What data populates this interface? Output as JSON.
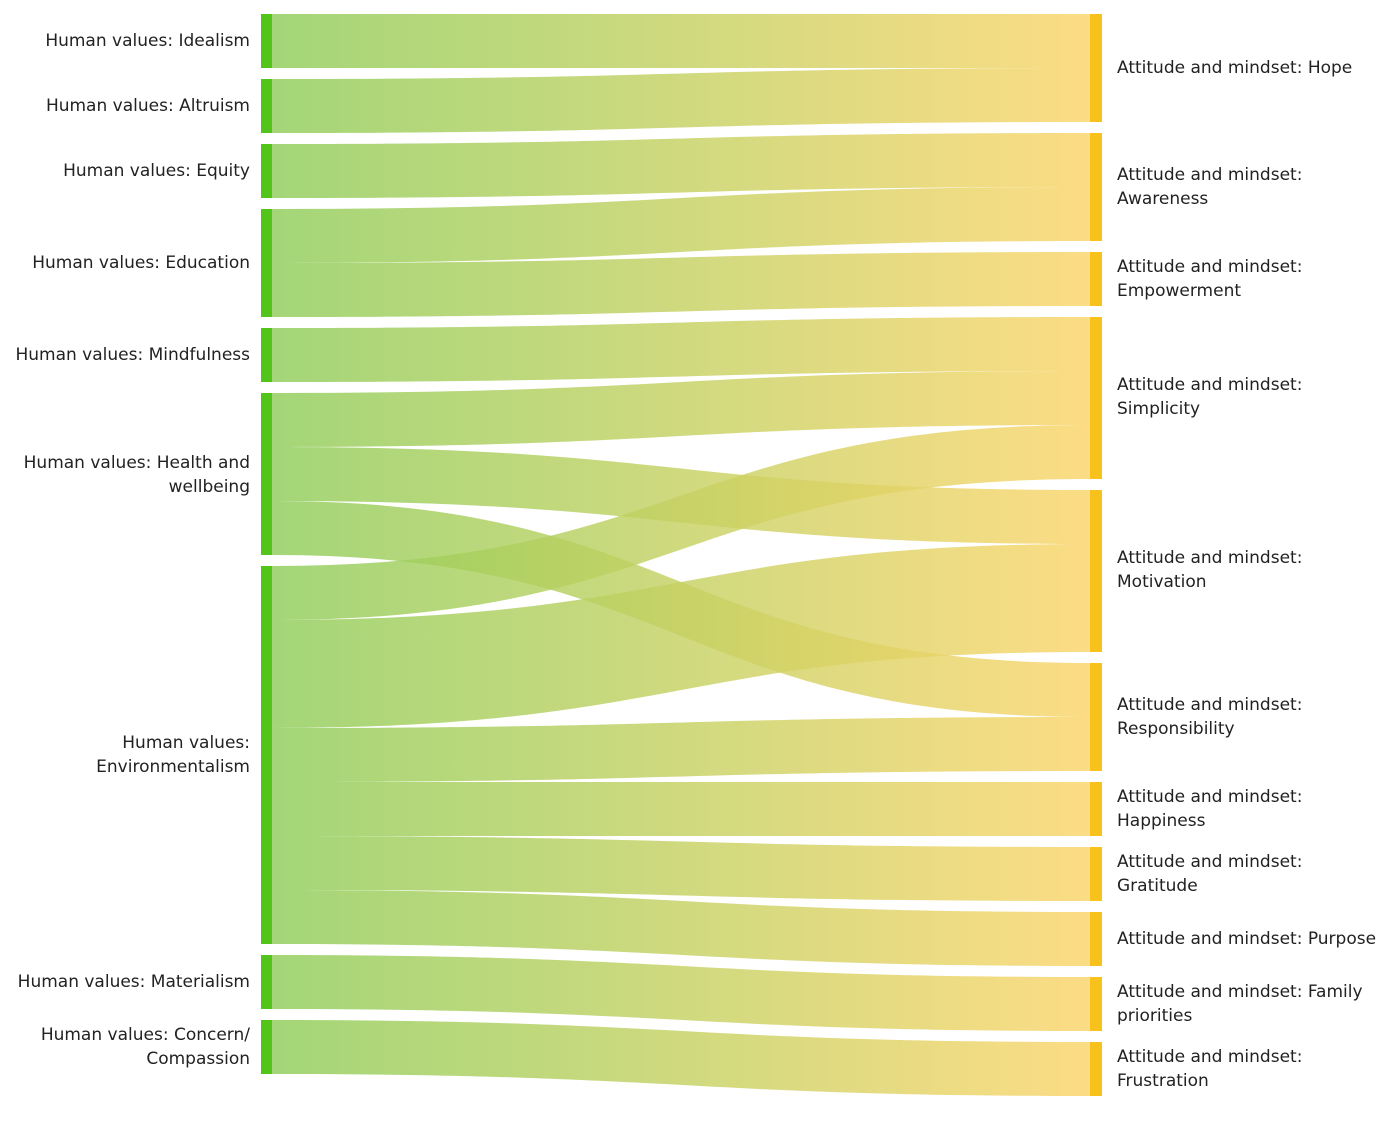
{
  "colors": {
    "source_node": "#52c41a",
    "target_node": "#f8c21c",
    "link_start": "#8fcd5a",
    "link_end": "#fbd56a"
  },
  "sources": [
    {
      "id": "idealism",
      "lines": [
        "Human values: Idealism"
      ]
    },
    {
      "id": "altruism",
      "lines": [
        "Human values: Altruism"
      ]
    },
    {
      "id": "equity",
      "lines": [
        "Human values: Equity"
      ]
    },
    {
      "id": "education",
      "lines": [
        "Human values: Education"
      ]
    },
    {
      "id": "mindfulness",
      "lines": [
        "Human values: Mindfulness"
      ]
    },
    {
      "id": "health",
      "lines": [
        "Human values: Health and",
        "wellbeing"
      ]
    },
    {
      "id": "environmentalism",
      "lines": [
        "Human values:",
        "Environmentalism"
      ]
    },
    {
      "id": "materialism",
      "lines": [
        "Human values: Materialism"
      ]
    },
    {
      "id": "concern",
      "lines": [
        "Human values: Concern/",
        "Compassion"
      ]
    }
  ],
  "targets": [
    {
      "id": "hope",
      "lines": [
        "Attitude and mindset: Hope"
      ]
    },
    {
      "id": "awareness",
      "lines": [
        "Attitude and mindset:",
        "Awareness"
      ]
    },
    {
      "id": "empowerment",
      "lines": [
        "Attitude and mindset:",
        "Empowerment"
      ]
    },
    {
      "id": "simplicity",
      "lines": [
        "Attitude and mindset:",
        "Simplicity"
      ]
    },
    {
      "id": "motivation",
      "lines": [
        "Attitude and mindset:",
        "Motivation"
      ]
    },
    {
      "id": "responsibility",
      "lines": [
        "Attitude and mindset:",
        "Responsibility"
      ]
    },
    {
      "id": "happiness",
      "lines": [
        "Attitude and mindset:",
        "Happiness"
      ]
    },
    {
      "id": "gratitude",
      "lines": [
        "Attitude and mindset:",
        "Gratitude"
      ]
    },
    {
      "id": "purpose",
      "lines": [
        "Attitude and mindset: Purpose"
      ]
    },
    {
      "id": "family",
      "lines": [
        "Attitude and mindset: Family",
        "priorities"
      ]
    },
    {
      "id": "frustration",
      "lines": [
        "Attitude and mindset:",
        "Frustration"
      ]
    }
  ],
  "links": [
    {
      "source": "idealism",
      "target": "hope",
      "value": 1
    },
    {
      "source": "altruism",
      "target": "hope",
      "value": 1
    },
    {
      "source": "equity",
      "target": "awareness",
      "value": 1
    },
    {
      "source": "education",
      "target": "awareness",
      "value": 1
    },
    {
      "source": "education",
      "target": "empowerment",
      "value": 1
    },
    {
      "source": "mindfulness",
      "target": "simplicity",
      "value": 1
    },
    {
      "source": "health",
      "target": "simplicity",
      "value": 1
    },
    {
      "source": "health",
      "target": "motivation",
      "value": 1
    },
    {
      "source": "health",
      "target": "responsibility",
      "value": 1
    },
    {
      "source": "environmentalism",
      "target": "simplicity",
      "value": 1
    },
    {
      "source": "environmentalism",
      "target": "motivation",
      "value": 2
    },
    {
      "source": "environmentalism",
      "target": "responsibility",
      "value": 1
    },
    {
      "source": "environmentalism",
      "target": "happiness",
      "value": 1
    },
    {
      "source": "environmentalism",
      "target": "gratitude",
      "value": 1
    },
    {
      "source": "environmentalism",
      "target": "purpose",
      "value": 1
    },
    {
      "source": "materialism",
      "target": "family",
      "value": 1
    },
    {
      "source": "concern",
      "target": "frustration",
      "value": 1
    }
  ]
}
